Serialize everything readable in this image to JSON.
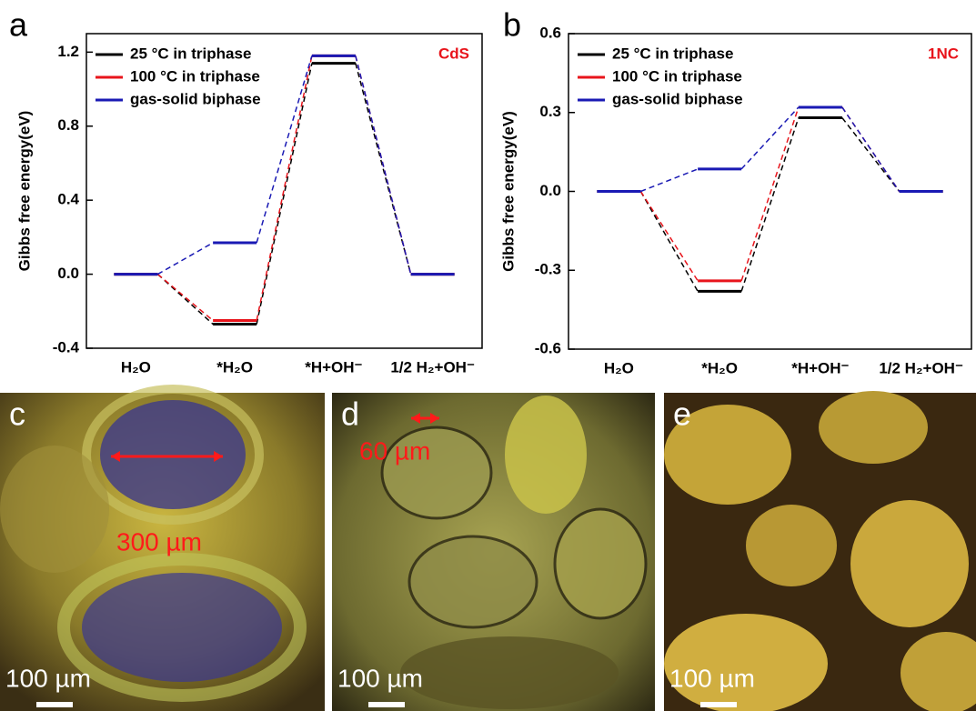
{
  "chart_data": [
    {
      "type": "line",
      "panel_label": "a",
      "y_label": "Gibbs free energy(eV)",
      "annotation": "CdS",
      "annotation_color": "#e8141b",
      "legend": "top-left",
      "categories": [
        "H₂O",
        "*H₂O",
        "*H+OH⁻",
        "1/2 H₂+OH⁻"
      ],
      "series": [
        {
          "name": "25 °C in triphase",
          "color": "#000000",
          "values": [
            0,
            -0.27,
            1.14,
            0
          ]
        },
        {
          "name": "100 °C in triphase",
          "color": "#e8141b",
          "values": [
            0,
            -0.25,
            1.18,
            0
          ]
        },
        {
          "name": "gas-solid biphase",
          "color": "#1a1ab4",
          "values": [
            0,
            0.17,
            1.18,
            0
          ]
        }
      ],
      "ylim": [
        -0.4,
        1.3
      ],
      "yticks": [
        -0.4,
        {
          "value": 0,
          "label": "0.0"
        },
        0.4,
        0.8,
        1.2
      ]
    },
    {
      "type": "line",
      "panel_label": "b",
      "y_label": "Gibbs free energy(eV)",
      "annotation": "1NC",
      "annotation_color": "#e8141b",
      "legend": "top-left",
      "categories": [
        "H₂O",
        "*H₂O",
        "*H+OH⁻",
        "1/2 H₂+OH⁻"
      ],
      "series": [
        {
          "name": "25 °C in triphase",
          "color": "#000000",
          "values": [
            0,
            -0.38,
            0.28,
            0
          ]
        },
        {
          "name": "100 °C in triphase",
          "color": "#e8141b",
          "values": [
            0,
            -0.34,
            0.32,
            0
          ]
        },
        {
          "name": "gas-solid biphase",
          "color": "#1a1ab4",
          "values": [
            0,
            0.085,
            0.32,
            0
          ]
        }
      ],
      "ylim": [
        -0.6,
        0.6
      ],
      "yticks": [
        -0.6,
        -0.3,
        {
          "value": 0,
          "label": "0.0"
        },
        0.3,
        0.6
      ]
    }
  ],
  "images": [
    {
      "label": "c",
      "annotation": "300 µm",
      "scale_bar": "100 µm"
    },
    {
      "label": "d",
      "annotation": "60 µm",
      "scale_bar": "100 µm"
    },
    {
      "label": "e",
      "scale_bar": "100 µm"
    }
  ]
}
